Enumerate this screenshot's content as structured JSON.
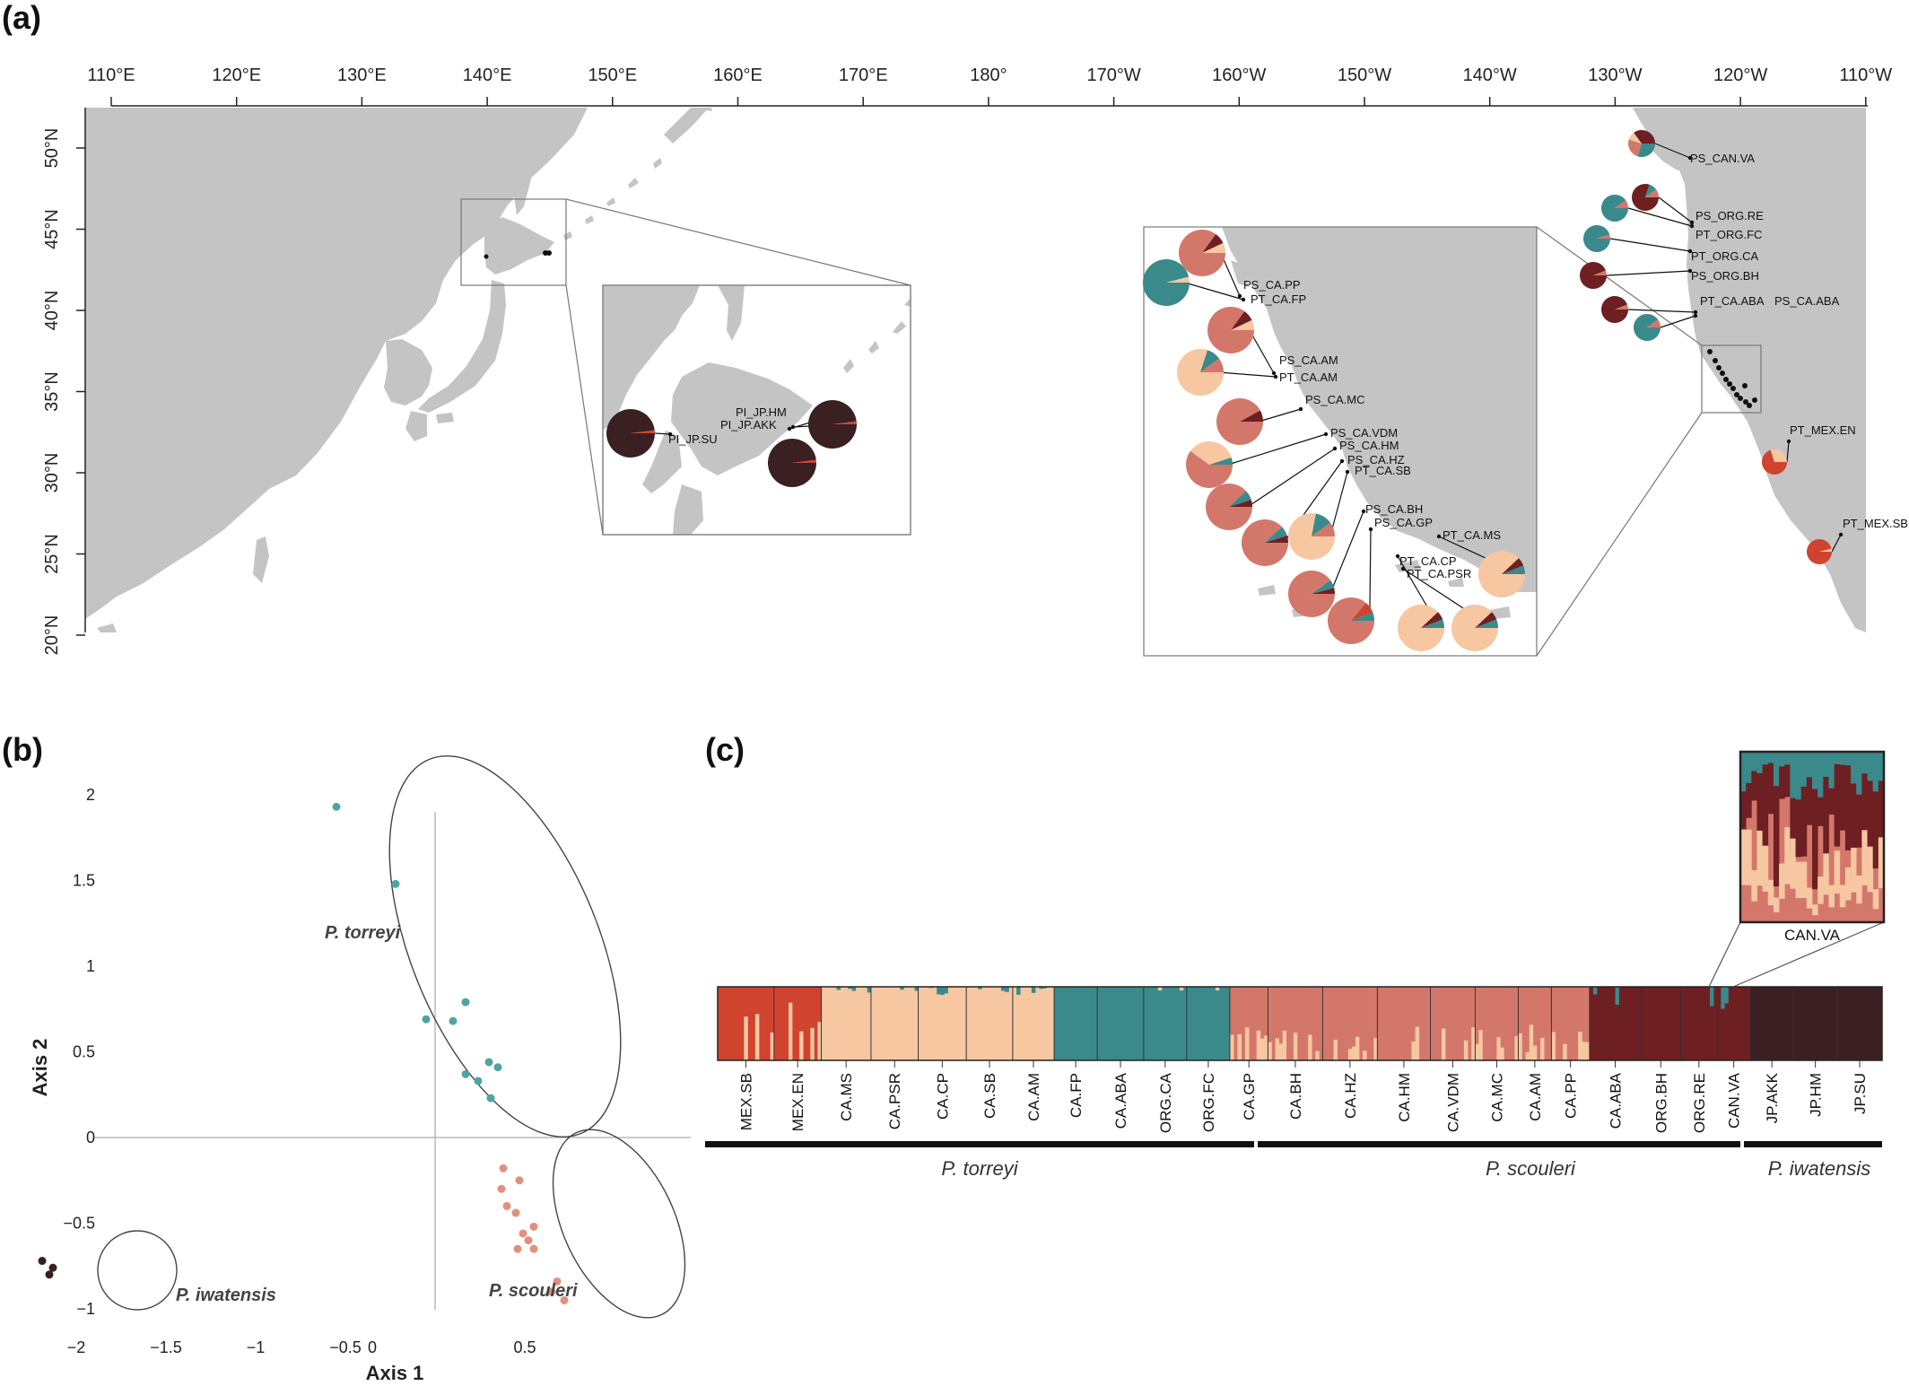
{
  "panels": {
    "a": "(a)",
    "b": "(b)",
    "c": "(c)"
  },
  "colors": {
    "mex_red": "#d0432f",
    "torreyi_peach": "#f6c7a1",
    "teal": "#3a8a8c",
    "scouleri_salmon": "#d4776b",
    "maroon": "#6e1f22",
    "iwatensis_dark": "#3a2020",
    "land": "#c4c4c4",
    "pca_teal": "#4fa3a6",
    "pca_salmon": "#e38f80",
    "pca_dark": "#3a1f1f"
  },
  "map": {
    "lon_labels": [
      "110°E",
      "120°E",
      "130°E",
      "140°E",
      "150°E",
      "160°E",
      "170°E",
      "180°",
      "170°W",
      "160°W",
      "150°W",
      "140°W",
      "130°W",
      "120°W",
      "110°W"
    ],
    "lat_labels": [
      "50°N",
      "45°N",
      "40°N",
      "35°N",
      "30°N",
      "25°N",
      "20°N"
    ],
    "japan_sites": [
      "PI_JP.HM",
      "PI_JP.AKK",
      "PI_JP.SU"
    ],
    "na_sites": [
      "PS_CAN.VA",
      "PS_ORG.RE",
      "PT_ORG.FC",
      "PT_ORG.CA",
      "PS_ORG.BH",
      "PT_CA.ABA",
      "PS_CA.ABA",
      "PT_MEX.EN",
      "PT_MEX.SB"
    ],
    "ca_sites": [
      "PS_CA.PP",
      "PT_CA.FP",
      "PS_CA.AM",
      "PT_CA.AM",
      "PS_CA.MC",
      "PS_CA.VDM",
      "PS_CA.HM",
      "PS_CA.HZ",
      "PT_CA.SB",
      "PS_CA.BH",
      "PS_CA.GP",
      "PT_CA.MS",
      "PT_CA.CP",
      "PT_CA.PSR"
    ]
  },
  "pca": {
    "xlabel": "Axis 1",
    "ylabel": "Axis 2",
    "xticks": [
      "−2",
      "−1.5",
      "−1",
      "−0.5",
      "0",
      "0.5"
    ],
    "yticks": [
      "2",
      "1.5",
      "1",
      "0.5",
      "0",
      "−0.5",
      "−1"
    ],
    "labels": {
      "torreyi": "P. torreyi",
      "iwatensis": "P.  iwatensis",
      "scouleri": "P. scouleri"
    }
  },
  "chart_data": {
    "type": "scatter",
    "title": "",
    "xlabel": "Axis 1",
    "ylabel": "Axis 2",
    "xlim": [
      -2.3,
      0.9
    ],
    "ylim": [
      -1.1,
      2.1
    ],
    "series": [
      {
        "name": "P. torreyi",
        "points": [
          [
            -0.55,
            1.93
          ],
          [
            -0.22,
            1.48
          ],
          [
            -0.05,
            0.69
          ],
          [
            0.1,
            0.68
          ],
          [
            0.17,
            0.79
          ],
          [
            0.17,
            0.37
          ],
          [
            0.24,
            0.33
          ],
          [
            0.3,
            0.44
          ],
          [
            0.35,
            0.41
          ],
          [
            0.31,
            0.23
          ]
        ]
      },
      {
        "name": "P. scouleri",
        "points": [
          [
            0.38,
            -0.18
          ],
          [
            0.37,
            -0.3
          ],
          [
            0.47,
            -0.25
          ],
          [
            0.4,
            -0.4
          ],
          [
            0.45,
            -0.44
          ],
          [
            0.55,
            -0.52
          ],
          [
            0.49,
            -0.56
          ],
          [
            0.52,
            -0.6
          ],
          [
            0.55,
            -0.65
          ],
          [
            0.46,
            -0.65
          ],
          [
            0.68,
            -0.84
          ],
          [
            0.65,
            -0.9
          ],
          [
            0.72,
            -0.95
          ]
        ]
      },
      {
        "name": "P.  iwatensis",
        "points": [
          [
            -2.19,
            -0.72
          ],
          [
            -2.13,
            -0.76
          ],
          [
            -2.15,
            -0.8
          ]
        ]
      }
    ]
  },
  "structure": {
    "populations": [
      "MEX.SB",
      "MEX.EN",
      "CA.MS",
      "CA.PSR",
      "CA.CP",
      "CA.SB",
      "CA.AM",
      "CA.FP",
      "CA.ABA",
      "ORG.CA",
      "ORG.FC",
      "CA.GP",
      "CA.BH",
      "CA.HZ",
      "CA.HM",
      "CA.VDM",
      "CA.MC",
      "CA.AM",
      "CA.PP",
      "CA.ABA",
      "ORG.BH",
      "ORG.RE",
      "CAN.VA",
      "JP.AKK",
      "JP.HM",
      "JP.SU"
    ],
    "species": [
      "P. torreyi",
      "P. scouleri",
      "P.  iwatensis"
    ],
    "inset_label": "CAN.VA"
  }
}
